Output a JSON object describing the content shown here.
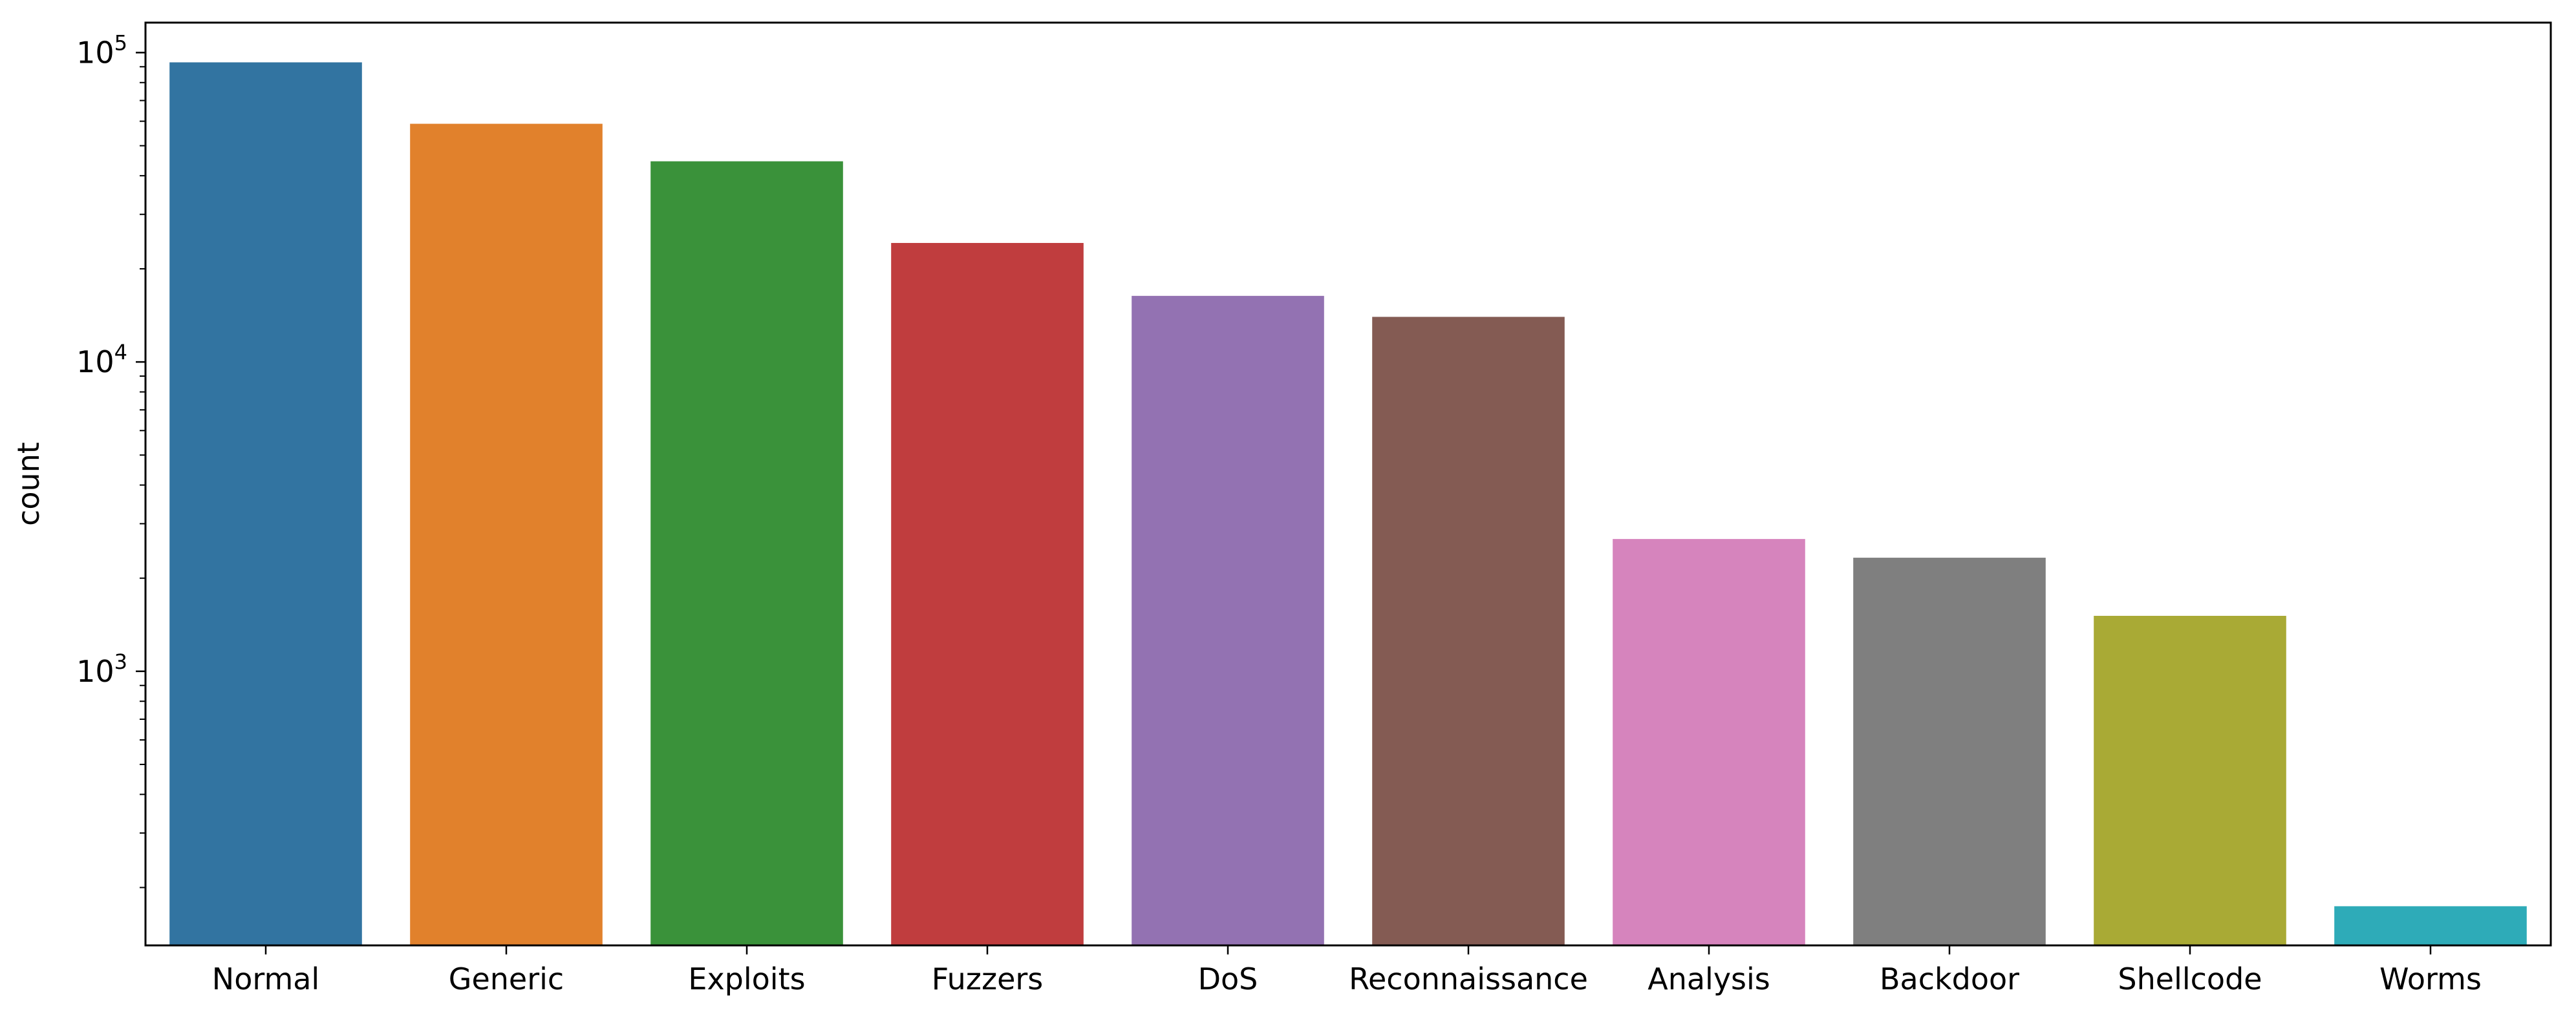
{
  "chart_data": {
    "type": "bar",
    "title": "",
    "xlabel": "",
    "ylabel": "count",
    "yscale": "log",
    "ylim": [
      130,
      125000
    ],
    "grid": false,
    "legend": "none",
    "categories": [
      "Normal",
      "Generic",
      "Exploits",
      "Fuzzers",
      "DoS",
      "Reconnaissance",
      "Analysis",
      "Backdoor",
      "Shellcode",
      "Worms"
    ],
    "values": [
      93000,
      58871,
      44525,
      24246,
      16353,
      13987,
      2677,
      2329,
      1511,
      174
    ],
    "colors": [
      "#3274a1",
      "#e1812c",
      "#3a923a",
      "#c03d3e",
      "#9372b2",
      "#845b53",
      "#d684bd",
      "#7f7f7f",
      "#a9aa35",
      "#2eabb8"
    ],
    "y_ticks": [
      {
        "value": 1000,
        "base": "10",
        "exp": "3"
      },
      {
        "value": 10000,
        "base": "10",
        "exp": "4"
      },
      {
        "value": 100000,
        "base": "10",
        "exp": "5"
      }
    ]
  }
}
